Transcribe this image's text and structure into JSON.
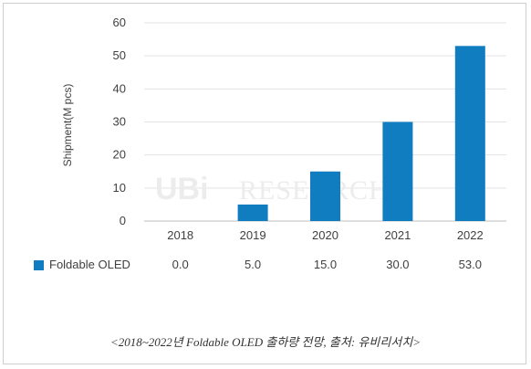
{
  "chart_data": {
    "type": "bar",
    "categories": [
      "2018",
      "2019",
      "2020",
      "2021",
      "2022"
    ],
    "series": [
      {
        "name": "Foldable OLED",
        "values": [
          0.0,
          5.0,
          15.0,
          30.0,
          53.0
        ],
        "color": "#0f7dc0"
      }
    ],
    "ylabel": "Shipment(M pcs)",
    "ylim": [
      0,
      60
    ],
    "yticks": [
      "0",
      "10",
      "20",
      "30",
      "40",
      "50",
      "60"
    ],
    "grid": true,
    "data_table": {
      "label": "Foldable OLED",
      "values": [
        "0.0",
        "5.0",
        "15.0",
        "30.0",
        "53.0"
      ]
    },
    "watermark": "UBI RESEARCH"
  },
  "caption": "<2018~2022년 Foldable OLED 출하량 전망, 출처: 유비리서치>"
}
